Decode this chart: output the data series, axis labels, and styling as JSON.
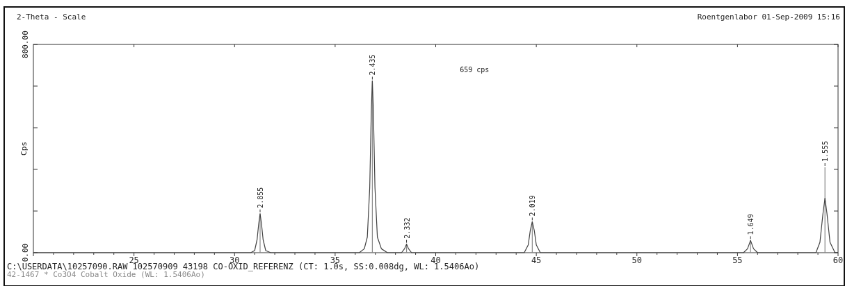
{
  "chart_data": {
    "type": "line",
    "title": "2-Theta - Scale",
    "subtitle": "Roentgenlabor 01-Sep-2009 15:16",
    "ylabel": "Cps",
    "xlim": [
      20,
      60
    ],
    "xticks": [
      25,
      30,
      35,
      40,
      45,
      50,
      55,
      60
    ],
    "ylim": [
      0,
      800
    ],
    "yticks": [
      {
        "value": 0,
        "label": "0.00"
      },
      {
        "value": 160,
        "label": null
      },
      {
        "value": 320,
        "label": null
      },
      {
        "value": 480,
        "label": null
      },
      {
        "value": 640,
        "label": null
      },
      {
        "value": 800,
        "label": "800.00"
      }
    ],
    "grid": false,
    "legend": "bottom left",
    "series": [
      {
        "color": "#404040",
        "x": [
          20,
          30.8,
          31.0,
          31.12,
          31.2,
          31.27,
          31.34,
          31.42,
          31.55,
          31.8,
          36.2,
          36.45,
          36.6,
          36.72,
          36.8,
          36.85,
          36.9,
          36.98,
          37.1,
          37.3,
          37.6,
          38.3,
          38.45,
          38.55,
          38.65,
          38.8,
          44.4,
          44.6,
          44.7,
          44.8,
          44.9,
          45.0,
          45.2,
          55.3,
          55.5,
          55.65,
          55.8,
          56.0,
          58.9,
          59.1,
          59.25,
          59.35,
          59.45,
          59.6,
          59.85,
          60
        ],
        "values": [
          0,
          0,
          8,
          50,
          110,
          150,
          110,
          50,
          8,
          0,
          0,
          15,
          60,
          250,
          550,
          660,
          550,
          250,
          60,
          15,
          0,
          0,
          15,
          33,
          15,
          0,
          0,
          30,
          85,
          119,
          85,
          30,
          0,
          0,
          15,
          47,
          15,
          0,
          0,
          40,
          150,
          209,
          150,
          40,
          0,
          0
        ]
      },
      {
        "type": "bar",
        "name": "42-1467 * Co3O4 Cobalt Oxide (WL: 1.5406Ao)",
        "color": "#8a8a8a",
        "x": [
          31.27,
          36.85,
          38.55,
          44.8,
          55.65,
          59.35
        ],
        "values": [
          150,
          660,
          33,
          119,
          47,
          328
        ]
      }
    ],
    "annotations": [
      {
        "text": "2.855",
        "x": 31.27,
        "y": 150
      },
      {
        "text": "2.435",
        "x": 36.85,
        "y": 660
      },
      {
        "text": "2.332",
        "x": 38.55,
        "y": 33
      },
      {
        "text": "2.019",
        "x": 44.8,
        "y": 119
      },
      {
        "text": "1.649",
        "x": 55.65,
        "y": 47
      },
      {
        "text": "1.555",
        "x": 59.35,
        "y": 328
      },
      "659 cps",
      "C:\\USERDATA\\10257090.RAW 102570909 43198 CO-OXID_REFERENZ (CT:  1.0s, SS:0.008dg, WL: 1.5406Ao)"
    ]
  }
}
